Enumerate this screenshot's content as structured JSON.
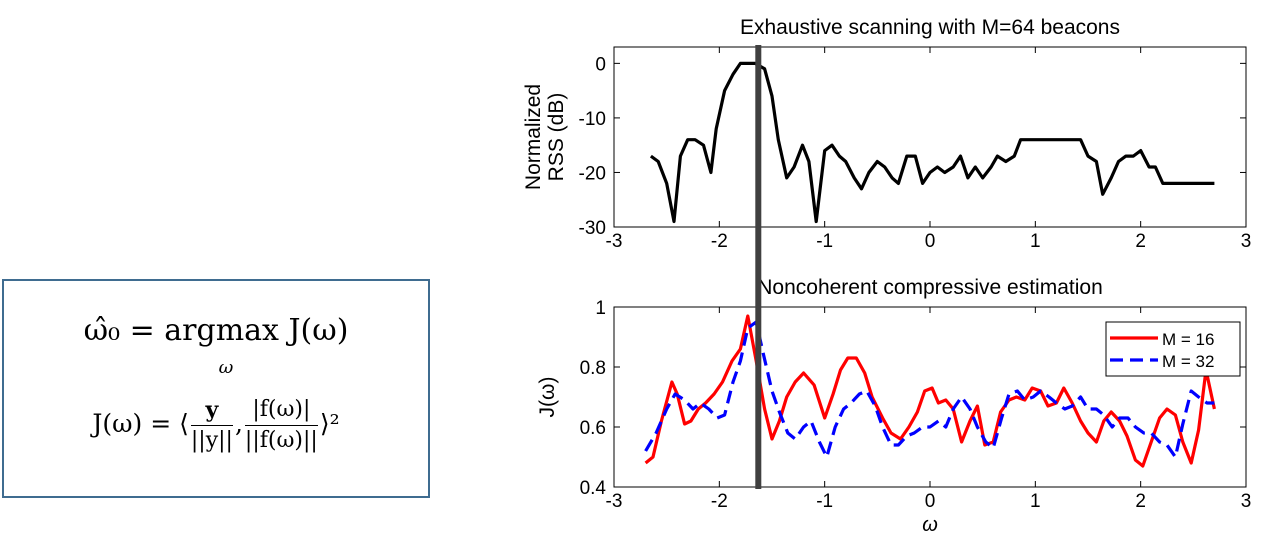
{
  "equation": {
    "line1": "ω̂₀ = argmax J(ω)",
    "line1_subscript": "ω",
    "line2_prefix": "J(ω) = ⟨",
    "frac1_num": "y",
    "frac1_den": "||y||",
    "comma": ",",
    "frac2_num": "|f(ω)|",
    "frac2_den": "||f(ω)||",
    "line2_suffix": "⟩²",
    "border_color": "#3f6c90"
  },
  "chart_data": [
    {
      "type": "line",
      "title": "Exhaustive scanning with M=64 beacons",
      "ylabel": "Normalized RSS (dB)",
      "ylabel_lines": [
        "Normalized",
        "RSS (dB)"
      ],
      "xlabel": "",
      "xlim": [
        -3,
        3
      ],
      "ylim": [
        -30,
        3
      ],
      "xticks": [
        "-3",
        "-2",
        "-1",
        "0",
        "1",
        "2",
        "3"
      ],
      "yticks": [
        "-30",
        "-20",
        "-10",
        "0"
      ],
      "xtick_values": [
        -3,
        -2,
        -1,
        0,
        1,
        2,
        3
      ],
      "ytick_values": [
        -30,
        -20,
        -10,
        0
      ],
      "series": [
        {
          "color": "#000000",
          "style": "solid",
          "x": [
            -2.65,
            -2.58,
            -2.5,
            -2.43,
            -2.37,
            -2.3,
            -2.23,
            -2.15,
            -2.08,
            -2.03,
            -1.95,
            -1.87,
            -1.8,
            -1.72,
            -1.66,
            -1.57,
            -1.5,
            -1.44,
            -1.36,
            -1.29,
            -1.21,
            -1.15,
            -1.08,
            -1.0,
            -0.93,
            -0.86,
            -0.8,
            -0.72,
            -0.65,
            -0.58,
            -0.5,
            -0.43,
            -0.36,
            -0.3,
            -0.22,
            -0.14,
            -0.07,
            0.0,
            0.07,
            0.14,
            0.22,
            0.29,
            0.36,
            0.43,
            0.5,
            0.58,
            0.64,
            0.72,
            0.8,
            0.86,
            0.93,
            1.0,
            1.07,
            1.14,
            1.22,
            1.28,
            1.36,
            1.43,
            1.5,
            1.58,
            1.64,
            1.72,
            1.79,
            1.86,
            1.93,
            2.0,
            2.08,
            2.14,
            2.21,
            2.28,
            2.36,
            2.43,
            2.5,
            2.57,
            2.64,
            2.7
          ],
          "y": [
            -17,
            -18,
            -22,
            -29,
            -17,
            -14,
            -14,
            -15,
            -20,
            -12,
            -5,
            -2,
            0,
            0,
            0,
            -1,
            -6,
            -14,
            -21,
            -19,
            -15,
            -18,
            -29,
            -16,
            -15,
            -17,
            -18,
            -21,
            -23,
            -20,
            -18,
            -19,
            -21,
            -22,
            -17,
            -17,
            -22,
            -20,
            -19,
            -20,
            -19,
            -17,
            -21,
            -19,
            -21,
            -19,
            -17,
            -18,
            -17,
            -14,
            -14,
            -14,
            -14,
            -14,
            -14,
            -14,
            -14,
            -14,
            -17,
            -18,
            -24,
            -21,
            -18,
            -17,
            -17,
            -16,
            -19,
            -19,
            -22,
            -22,
            -22,
            -22,
            -22,
            -22,
            -22,
            -22
          ]
        }
      ]
    },
    {
      "type": "line",
      "title": "Noncoherent compressive estimation",
      "ylabel": "J(ω)",
      "xlabel": "ω",
      "xlim": [
        -3,
        3
      ],
      "ylim": [
        0.4,
        1
      ],
      "xticks": [
        "-3",
        "-2",
        "-1",
        "0",
        "1",
        "2",
        "3"
      ],
      "yticks": [
        "0.4",
        "0.6",
        "0.8",
        "1"
      ],
      "xtick_values": [
        -3,
        -2,
        -1,
        0,
        1,
        2,
        3
      ],
      "ytick_values": [
        0.4,
        0.6,
        0.8,
        1
      ],
      "legend_position": "top-right",
      "series": [
        {
          "name": "M = 16",
          "color": "#ff0000",
          "style": "solid",
          "x": [
            -2.7,
            -2.63,
            -2.55,
            -2.45,
            -2.4,
            -2.33,
            -2.27,
            -2.2,
            -2.13,
            -2.05,
            -1.97,
            -1.88,
            -1.8,
            -1.73,
            -1.65,
            -1.57,
            -1.5,
            -1.43,
            -1.36,
            -1.28,
            -1.2,
            -1.1,
            -1.0,
            -0.92,
            -0.85,
            -0.78,
            -0.7,
            -0.62,
            -0.55,
            -0.45,
            -0.37,
            -0.28,
            -0.2,
            -0.12,
            -0.05,
            0.02,
            0.08,
            0.15,
            0.22,
            0.3,
            0.38,
            0.45,
            0.52,
            0.6,
            0.67,
            0.75,
            0.82,
            0.9,
            0.97,
            1.05,
            1.12,
            1.2,
            1.27,
            1.35,
            1.43,
            1.5,
            1.58,
            1.65,
            1.72,
            1.8,
            1.87,
            1.95,
            2.02,
            2.1,
            2.18,
            2.25,
            2.33,
            2.4,
            2.48,
            2.55,
            2.62,
            2.7
          ],
          "y": [
            0.48,
            0.5,
            0.62,
            0.75,
            0.71,
            0.61,
            0.62,
            0.66,
            0.68,
            0.71,
            0.75,
            0.82,
            0.86,
            0.97,
            0.82,
            0.66,
            0.56,
            0.62,
            0.7,
            0.75,
            0.78,
            0.74,
            0.63,
            0.71,
            0.79,
            0.83,
            0.83,
            0.78,
            0.7,
            0.63,
            0.58,
            0.56,
            0.6,
            0.65,
            0.72,
            0.73,
            0.68,
            0.69,
            0.66,
            0.55,
            0.62,
            0.67,
            0.54,
            0.55,
            0.65,
            0.69,
            0.7,
            0.69,
            0.73,
            0.72,
            0.67,
            0.68,
            0.73,
            0.68,
            0.62,
            0.58,
            0.55,
            0.62,
            0.65,
            0.62,
            0.57,
            0.49,
            0.47,
            0.55,
            0.63,
            0.66,
            0.64,
            0.55,
            0.48,
            0.59,
            0.79,
            0.66
          ]
        },
        {
          "name": "M = 32",
          "color": "#0000ff",
          "style": "dashed",
          "x": [
            -2.7,
            -2.6,
            -2.5,
            -2.42,
            -2.33,
            -2.25,
            -2.18,
            -2.1,
            -2.02,
            -1.95,
            -1.87,
            -1.8,
            -1.73,
            -1.65,
            -1.58,
            -1.5,
            -1.43,
            -1.35,
            -1.28,
            -1.2,
            -1.13,
            -1.05,
            -0.98,
            -0.9,
            -0.82,
            -0.75,
            -0.67,
            -0.6,
            -0.52,
            -0.45,
            -0.37,
            -0.3,
            -0.22,
            -0.15,
            -0.07,
            0.0,
            0.08,
            0.15,
            0.22,
            0.3,
            0.38,
            0.45,
            0.53,
            0.6,
            0.68,
            0.75,
            0.83,
            0.9,
            0.98,
            1.05,
            1.13,
            1.2,
            1.28,
            1.35,
            1.43,
            1.5,
            1.58,
            1.65,
            1.73,
            1.8,
            1.88,
            1.95,
            2.03,
            2.1,
            2.18,
            2.25,
            2.33,
            2.4,
            2.48,
            2.55,
            2.63,
            2.7
          ],
          "y": [
            0.52,
            0.58,
            0.66,
            0.71,
            0.69,
            0.66,
            0.68,
            0.66,
            0.63,
            0.64,
            0.75,
            0.82,
            0.93,
            0.95,
            0.84,
            0.72,
            0.65,
            0.58,
            0.56,
            0.6,
            0.62,
            0.55,
            0.5,
            0.6,
            0.66,
            0.68,
            0.71,
            0.72,
            0.67,
            0.6,
            0.54,
            0.54,
            0.57,
            0.58,
            0.6,
            0.6,
            0.62,
            0.6,
            0.66,
            0.7,
            0.66,
            0.6,
            0.55,
            0.53,
            0.63,
            0.71,
            0.72,
            0.69,
            0.7,
            0.72,
            0.7,
            0.68,
            0.66,
            0.67,
            0.7,
            0.66,
            0.66,
            0.64,
            0.6,
            0.63,
            0.63,
            0.6,
            0.58,
            0.58,
            0.55,
            0.54,
            0.5,
            0.61,
            0.72,
            0.7,
            0.68,
            0.68
          ]
        }
      ]
    }
  ],
  "marker_line": {
    "x": -1.63,
    "color": "#404040"
  }
}
